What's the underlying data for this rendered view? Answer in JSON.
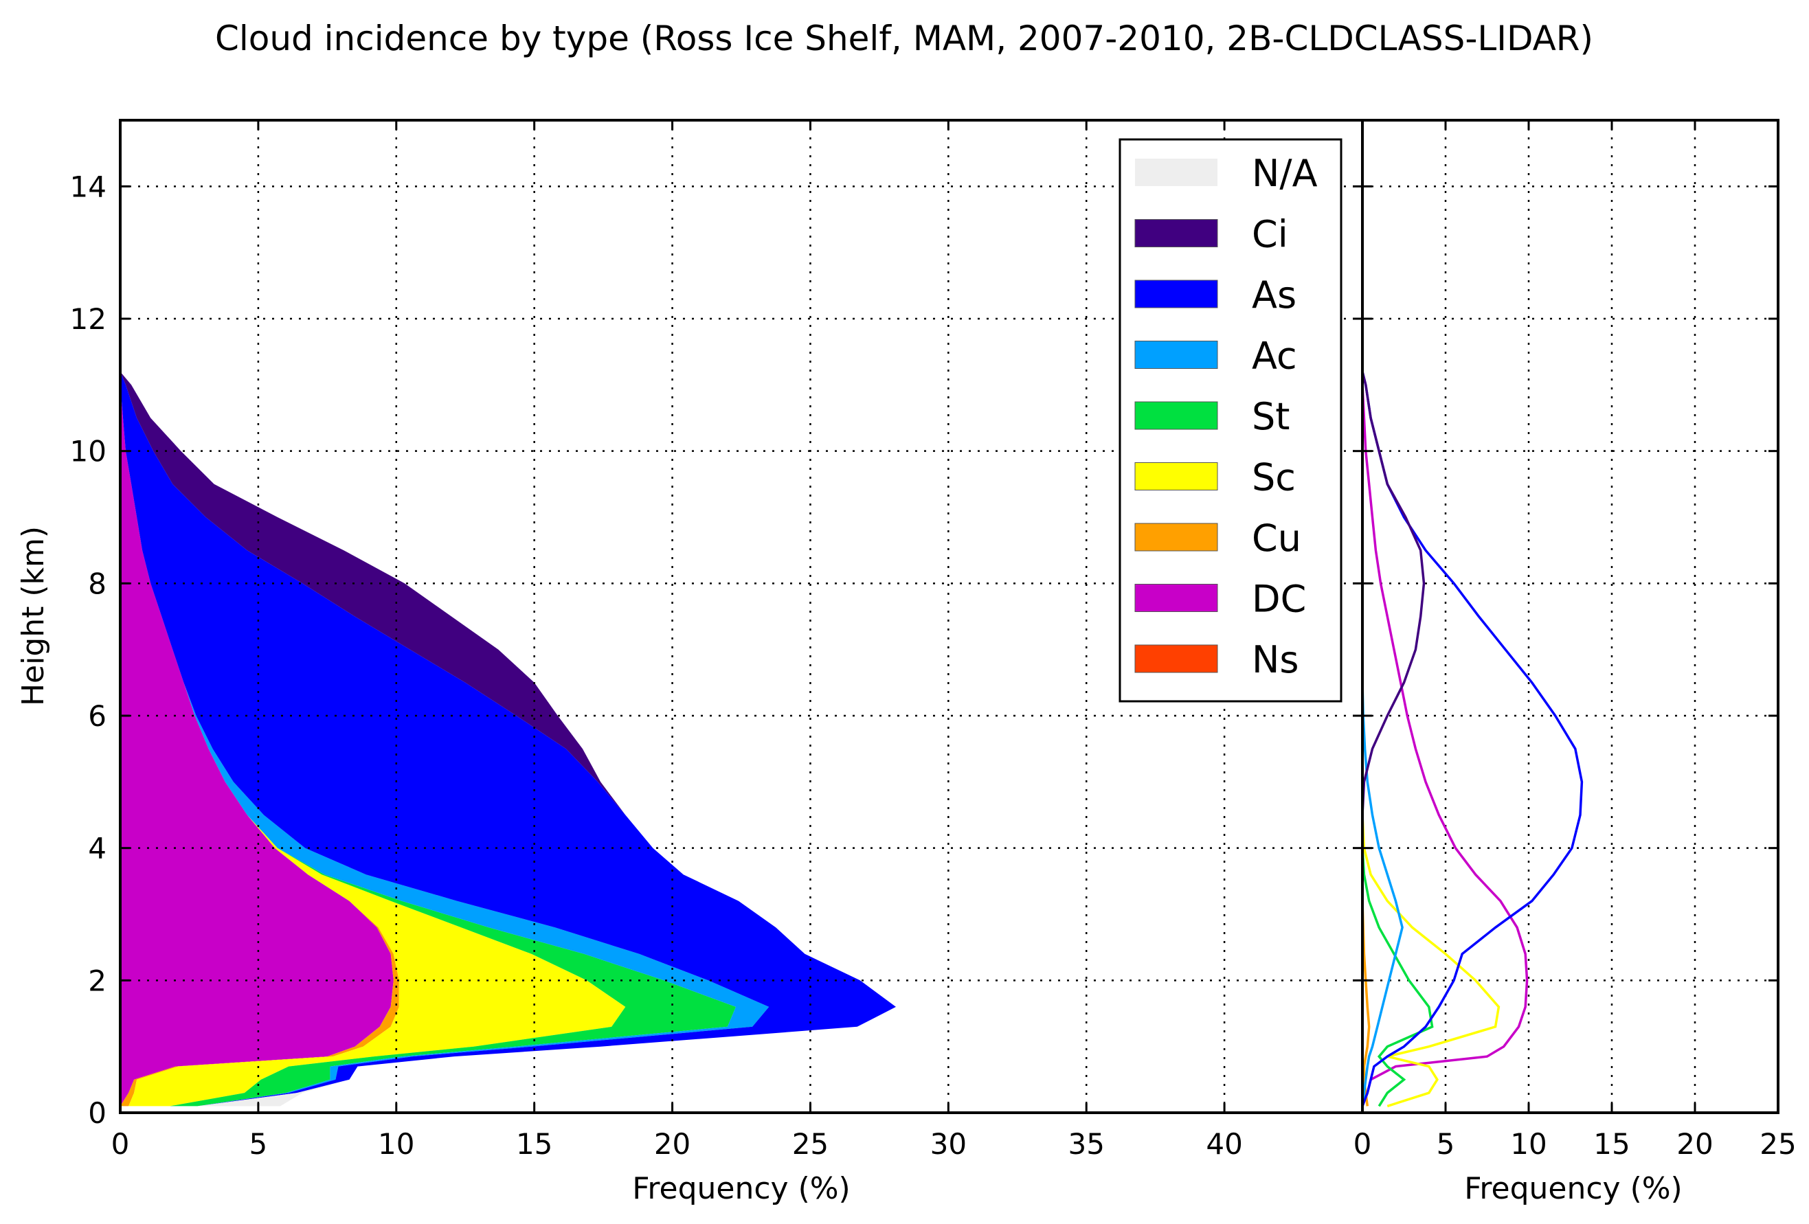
{
  "figure": {
    "title": "Cloud incidence by type (Ross Ice Shelf, MAM, 2007-2010, 2B-CLDCLASS-LIDAR)"
  },
  "chart_data": [
    {
      "type": "area",
      "subtype": "stacked-horizontal",
      "xlabel": "Frequency (%)",
      "ylabel": "Height (km)",
      "xlim": [
        0,
        45
      ],
      "ylim": [
        0,
        15
      ],
      "xticks": [
        "0",
        "5",
        "10",
        "15",
        "20",
        "25",
        "30",
        "35",
        "40"
      ],
      "yticks": [
        "0",
        "2",
        "4",
        "6",
        "8",
        "10",
        "12",
        "14"
      ],
      "grid": true,
      "legend_position": "upper-right",
      "legend": [
        {
          "name": "N/A",
          "color": "#eeeeee"
        },
        {
          "name": "Ci",
          "color": "#400080"
        },
        {
          "name": "As",
          "color": "#0000ff"
        },
        {
          "name": "Ac",
          "color": "#00a0ff"
        },
        {
          "name": "St",
          "color": "#00e040"
        },
        {
          "name": "Sc",
          "color": "#ffff00"
        },
        {
          "name": "Cu",
          "color": "#ffa000"
        },
        {
          "name": "DC",
          "color": "#c800c8"
        },
        {
          "name": "Ns",
          "color": "#ff4000"
        }
      ],
      "heights_km": [
        0.1,
        0.3,
        0.5,
        0.7,
        0.85,
        1.0,
        1.3,
        1.6,
        2.0,
        2.4,
        2.8,
        3.2,
        3.6,
        4.0,
        4.5,
        5.0,
        5.5,
        6.0,
        6.5,
        7.0,
        7.5,
        8.0,
        8.5,
        9.0,
        9.5,
        10.0,
        10.5,
        11.0,
        11.2
      ],
      "series": [
        {
          "name": "DC",
          "color": "#c800c8",
          "values": [
            0.0,
            0.3,
            0.5,
            2.0,
            7.5,
            8.5,
            9.4,
            9.8,
            9.9,
            9.8,
            9.3,
            8.3,
            6.8,
            5.6,
            4.6,
            3.8,
            3.2,
            2.7,
            2.3,
            1.9,
            1.5,
            1.1,
            0.8,
            0.6,
            0.4,
            0.2,
            0.1,
            0.0,
            0.0
          ]
        },
        {
          "name": "Cu",
          "color": "#ffa000",
          "values": [
            0.3,
            0.2,
            0.1,
            0.1,
            0.2,
            0.3,
            0.4,
            0.3,
            0.2,
            0.1,
            0.05,
            0.0,
            0.0,
            0.0,
            0.0,
            0.0,
            0.0,
            0.0,
            0.0,
            0.0,
            0.0,
            0.0,
            0.0,
            0.0,
            0.0,
            0.0,
            0.0,
            0.0,
            0.0
          ]
        },
        {
          "name": "Sc",
          "color": "#ffff00",
          "values": [
            1.5,
            4.0,
            4.5,
            4.0,
            1.5,
            4.0,
            8.0,
            8.2,
            6.8,
            5.0,
            3.0,
            1.5,
            0.5,
            0.1,
            0.0,
            0.0,
            0.0,
            0.0,
            0.0,
            0.0,
            0.0,
            0.0,
            0.0,
            0.0,
            0.0,
            0.0,
            0.0,
            0.0,
            0.0
          ]
        },
        {
          "name": "St",
          "color": "#00e040",
          "values": [
            1.0,
            1.5,
            2.5,
            1.5,
            1.0,
            1.5,
            4.2,
            4.0,
            2.8,
            1.9,
            1.0,
            0.4,
            0.1,
            0.0,
            0.0,
            0.0,
            0.0,
            0.0,
            0.0,
            0.0,
            0.0,
            0.0,
            0.0,
            0.0,
            0.0,
            0.0,
            0.0,
            0.0,
            0.0
          ]
        },
        {
          "name": "Ac",
          "color": "#00a0ff",
          "values": [
            0.0,
            0.1,
            0.2,
            0.3,
            0.4,
            0.6,
            0.9,
            1.2,
            1.6,
            2.0,
            2.4,
            2.0,
            1.5,
            1.0,
            0.6,
            0.3,
            0.15,
            0.05,
            0.0,
            0.0,
            0.0,
            0.0,
            0.0,
            0.0,
            0.0,
            0.0,
            0.0,
            0.0,
            0.0
          ]
        },
        {
          "name": "As",
          "color": "#0000ff",
          "values": [
            0.0,
            0.3,
            0.5,
            0.7,
            1.5,
            2.5,
            3.8,
            4.6,
            5.5,
            6.0,
            8.0,
            10.2,
            11.5,
            12.6,
            13.1,
            13.2,
            12.8,
            11.6,
            10.2,
            8.6,
            7.0,
            5.5,
            3.8,
            2.5,
            1.5,
            1.0,
            0.5,
            0.2,
            0.0
          ]
        },
        {
          "name": "Ci",
          "color": "#400080",
          "values": [
            0.0,
            0.0,
            0.0,
            0.0,
            0.0,
            0.0,
            0.0,
            0.0,
            0.0,
            0.0,
            0.0,
            0.0,
            0.0,
            0.0,
            0.0,
            0.1,
            0.6,
            1.5,
            2.5,
            3.2,
            3.5,
            3.7,
            3.5,
            2.6,
            1.5,
            1.0,
            0.5,
            0.2,
            0.0
          ]
        },
        {
          "name": "N/A",
          "color": "#eeeeee",
          "values": [
            3.0,
            0.2,
            0.0,
            0.0,
            0.0,
            0.0,
            0.0,
            0.0,
            0.0,
            0.0,
            0.0,
            0.0,
            0.0,
            0.0,
            0.0,
            0.0,
            0.0,
            0.0,
            0.0,
            0.0,
            0.0,
            0.0,
            0.0,
            0.0,
            0.0,
            0.0,
            0.0,
            0.0,
            0.0
          ]
        }
      ]
    },
    {
      "type": "line",
      "subtype": "horizontal-profiles",
      "xlabel": "Frequency (%)",
      "xlim": [
        0,
        25
      ],
      "ylim": [
        0,
        15
      ],
      "xticks": [
        "0",
        "5",
        "10",
        "15",
        "20",
        "25"
      ],
      "grid": true,
      "series_ref": "same series as stacked chart, plotted individually (not stacked)"
    }
  ]
}
